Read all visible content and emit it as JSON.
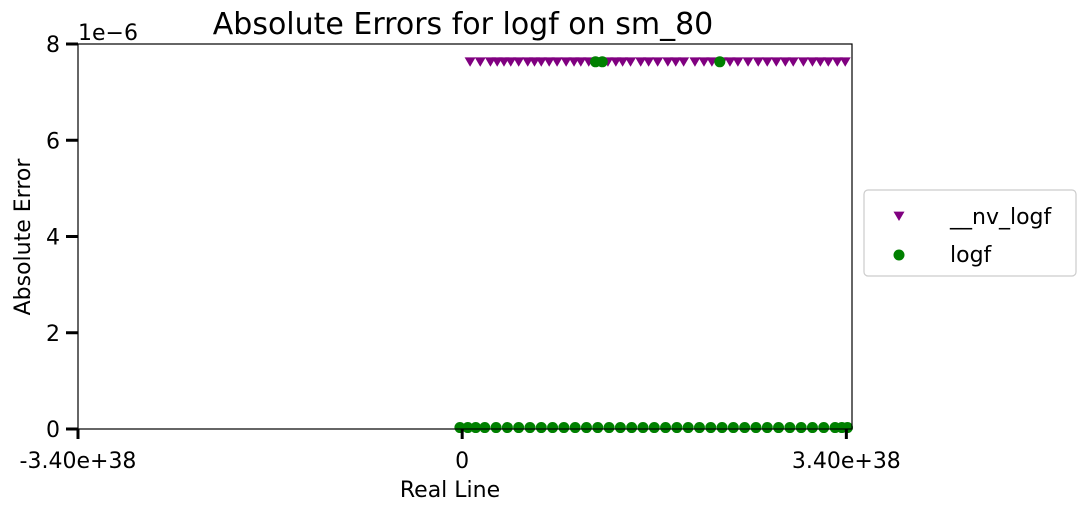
{
  "chart_data": {
    "type": "scatter",
    "title": "Absolute Errors for logf on sm_80",
    "xlabel": "Real Line",
    "ylabel": "Absolute Error",
    "y_offset_text": "1e−6",
    "xlim": [
      -3.4e+38,
      3.45e+38
    ],
    "ylim": [
      0,
      8e-06
    ],
    "x_ticks": [
      -3.4e+38,
      0,
      3.4e+38
    ],
    "x_tick_labels": [
      "-3.40e+38",
      "0",
      "3.40e+38"
    ],
    "y_ticks": [
      0,
      2e-06,
      4e-06,
      6e-06,
      8e-06
    ],
    "y_tick_labels": [
      "0",
      "2",
      "4",
      "6",
      "8"
    ],
    "grid": false,
    "legend_position": "outside-right",
    "series": [
      {
        "name": "__nv_logf",
        "marker": "triangle-down",
        "color": "#800080",
        "points": [
          [
            7e+36,
            7.63e-06
          ],
          [
            1.6e+37,
            7.63e-06
          ],
          [
            2.5e+37,
            7.63e-06
          ],
          [
            3.1e+37,
            7.63e-06
          ],
          [
            3.7e+37,
            7.63e-06
          ],
          [
            4.3e+37,
            7.63e-06
          ],
          [
            5e+37,
            7.63e-06
          ],
          [
            5.8e+37,
            7.63e-06
          ],
          [
            6.4e+37,
            7.63e-06
          ],
          [
            7e+37,
            7.63e-06
          ],
          [
            7.7e+37,
            7.63e-06
          ],
          [
            8.4e+37,
            7.63e-06
          ],
          [
            9.2e+37,
            7.63e-06
          ],
          [
            9.9e+37,
            7.63e-06
          ],
          [
            1.05e+38,
            7.63e-06
          ],
          [
            1.12e+38,
            7.63e-06
          ],
          [
            1.22e+38,
            7.63e-06
          ],
          [
            1.29e+38,
            7.63e-06
          ],
          [
            1.36e+38,
            7.63e-06
          ],
          [
            1.42e+38,
            7.63e-06
          ],
          [
            1.49e+38,
            7.63e-06
          ],
          [
            1.58e+38,
            7.63e-06
          ],
          [
            1.65e+38,
            7.63e-06
          ],
          [
            1.73e+38,
            7.63e-06
          ],
          [
            1.82e+38,
            7.63e-06
          ],
          [
            1.89e+38,
            7.63e-06
          ],
          [
            1.96e+38,
            7.63e-06
          ],
          [
            2.06e+38,
            7.63e-06
          ],
          [
            2.14e+38,
            7.63e-06
          ],
          [
            2.21e+38,
            7.63e-06
          ],
          [
            2.3e+38,
            7.63e-06
          ],
          [
            2.37e+38,
            7.63e-06
          ],
          [
            2.44e+38,
            7.63e-06
          ],
          [
            2.53e+38,
            7.63e-06
          ],
          [
            2.62e+38,
            7.63e-06
          ],
          [
            2.7e+38,
            7.63e-06
          ],
          [
            2.78e+38,
            7.63e-06
          ],
          [
            2.86e+38,
            7.63e-06
          ],
          [
            2.93e+38,
            7.63e-06
          ],
          [
            3.02e+38,
            7.63e-06
          ],
          [
            3.1e+38,
            7.63e-06
          ],
          [
            3.17e+38,
            7.63e-06
          ],
          [
            3.24e+38,
            7.63e-06
          ],
          [
            3.32e+38,
            7.63e-06
          ],
          [
            3.39e+38,
            7.63e-06
          ]
        ]
      },
      {
        "name": "logf",
        "marker": "circle",
        "color": "#008000",
        "points": [
          [
            1.18e+38,
            7.63e-06
          ],
          [
            1.24e+38,
            7.63e-06
          ],
          [
            2.28e+38,
            7.63e-06
          ],
          [
            -2e+36,
            3e-08
          ],
          [
            5e+36,
            3e-08
          ],
          [
            1.2e+37,
            3e-08
          ],
          [
            2e+37,
            3e-08
          ],
          [
            3e+37,
            3e-08
          ],
          [
            4e+37,
            3e-08
          ],
          [
            5e+37,
            3e-08
          ],
          [
            6e+37,
            3e-08
          ],
          [
            7e+37,
            3e-08
          ],
          [
            8e+37,
            3e-08
          ],
          [
            9e+37,
            3e-08
          ],
          [
            1e+38,
            3e-08
          ],
          [
            1.1e+38,
            3e-08
          ],
          [
            1.2e+38,
            3e-08
          ],
          [
            1.3e+38,
            3e-08
          ],
          [
            1.4e+38,
            3e-08
          ],
          [
            1.5e+38,
            3e-08
          ],
          [
            1.6e+38,
            3e-08
          ],
          [
            1.7e+38,
            3e-08
          ],
          [
            1.8e+38,
            3e-08
          ],
          [
            1.9e+38,
            3e-08
          ],
          [
            2e+38,
            3e-08
          ],
          [
            2.1e+38,
            3e-08
          ],
          [
            2.2e+38,
            3e-08
          ],
          [
            2.3e+38,
            3e-08
          ],
          [
            2.4e+38,
            3e-08
          ],
          [
            2.5e+38,
            3e-08
          ],
          [
            2.6e+38,
            3e-08
          ],
          [
            2.7e+38,
            3e-08
          ],
          [
            2.8e+38,
            3e-08
          ],
          [
            2.9e+38,
            3e-08
          ],
          [
            3e+38,
            3e-08
          ],
          [
            3.1e+38,
            3e-08
          ],
          [
            3.2e+38,
            3e-08
          ],
          [
            3.3e+38,
            3e-08
          ],
          [
            3.36e+38,
            3e-08
          ],
          [
            3.41e+38,
            3e-08
          ]
        ]
      }
    ]
  }
}
